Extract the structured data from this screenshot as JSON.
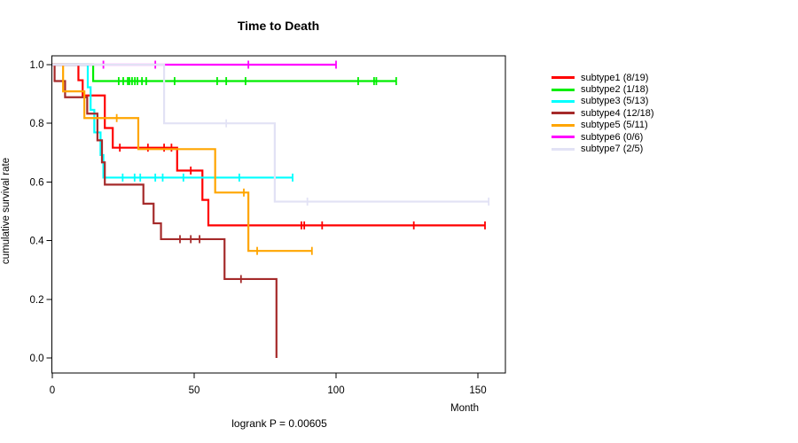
{
  "window": {
    "title": "Time to Death"
  },
  "chart_data": {
    "type": "line",
    "variant": "kaplan-meier-step",
    "title": "Time to Death",
    "xlabel": "Month",
    "ylabel": "cumulative survival rate",
    "annotation": "logrank P = 0.00605",
    "xlim": [
      0,
      160
    ],
    "ylim": [
      0.0,
      1.0
    ],
    "x_ticks": [
      0,
      50,
      100,
      150
    ],
    "y_ticks": [
      0.0,
      0.2,
      0.4,
      0.6,
      0.8,
      1.0
    ],
    "grid": false,
    "legend_position": "right-outside",
    "series": [
      {
        "name": "subtype1",
        "label": "subtype1 (8/19)",
        "events": "8/19",
        "color": "#ff0000",
        "steps": [
          [
            0,
            1.0
          ],
          [
            9.2,
            0.947
          ],
          [
            10.7,
            0.895
          ],
          [
            18.5,
            0.784
          ],
          [
            21.3,
            0.717
          ],
          [
            44,
            0.639
          ],
          [
            52.9,
            0.539
          ],
          [
            55,
            0.452
          ]
        ],
        "end": 152.5,
        "censors": [
          [
            23.8,
            0.717
          ],
          [
            33.7,
            0.717
          ],
          [
            39.4,
            0.717
          ],
          [
            42,
            0.717
          ],
          [
            48.8,
            0.639
          ],
          [
            87.8,
            0.452
          ],
          [
            88.8,
            0.452
          ],
          [
            95.1,
            0.452
          ],
          [
            127.4,
            0.452
          ],
          [
            152.5,
            0.452
          ]
        ]
      },
      {
        "name": "subtype2",
        "label": "subtype2 (1/18)",
        "events": "1/18",
        "color": "#00ee00",
        "steps": [
          [
            0,
            1.0
          ],
          [
            14.4,
            0.944
          ]
        ],
        "end": 121.2,
        "censors": [
          [
            23.4,
            0.944
          ],
          [
            25,
            0.944
          ],
          [
            26.6,
            0.944
          ],
          [
            27.2,
            0.944
          ],
          [
            28.1,
            0.944
          ],
          [
            29.1,
            0.944
          ],
          [
            30,
            0.944
          ],
          [
            31.6,
            0.944
          ],
          [
            33.1,
            0.944
          ],
          [
            43.1,
            0.944
          ],
          [
            58.1,
            0.944
          ],
          [
            61.3,
            0.944
          ],
          [
            68.1,
            0.944
          ],
          [
            107.8,
            0.944
          ],
          [
            113.4,
            0.944
          ],
          [
            114.2,
            0.944
          ],
          [
            121.2,
            0.944
          ]
        ]
      },
      {
        "name": "subtype3",
        "label": "subtype3 (5/13)",
        "events": "5/13",
        "color": "#00ffff",
        "steps": [
          [
            0,
            1.0
          ],
          [
            12.5,
            0.923
          ],
          [
            13.5,
            0.846
          ],
          [
            14.8,
            0.769
          ],
          [
            17,
            0.692
          ],
          [
            18,
            0.615
          ]
        ],
        "end": 84.7,
        "censors": [
          [
            24.8,
            0.615
          ],
          [
            29,
            0.615
          ],
          [
            31,
            0.615
          ],
          [
            36.3,
            0.615
          ],
          [
            38.9,
            0.615
          ],
          [
            46.2,
            0.615
          ],
          [
            65.9,
            0.615
          ],
          [
            84.7,
            0.615
          ]
        ]
      },
      {
        "name": "subtype4",
        "label": "subtype4 (12/18)",
        "events": "12/18",
        "color": "#a52a2a",
        "steps": [
          [
            0,
            1.0
          ],
          [
            0.8,
            0.944
          ],
          [
            4.5,
            0.889
          ],
          [
            12.3,
            0.833
          ],
          [
            15.9,
            0.742
          ],
          [
            17.5,
            0.667
          ],
          [
            18.5,
            0.591
          ],
          [
            32.1,
            0.526
          ],
          [
            35.7,
            0.459
          ],
          [
            38.3,
            0.405
          ],
          [
            60.7,
            0.269
          ],
          [
            79,
            0.0
          ]
        ],
        "end": 79,
        "censors": [
          [
            45,
            0.405
          ],
          [
            48.8,
            0.405
          ],
          [
            51.9,
            0.405
          ],
          [
            66.5,
            0.269
          ]
        ]
      },
      {
        "name": "subtype5",
        "label": "subtype5 (5/11)",
        "events": "5/11",
        "color": "#ffa500",
        "steps": [
          [
            0,
            1.0
          ],
          [
            3.8,
            0.909
          ],
          [
            11.3,
            0.818
          ],
          [
            30.3,
            0.712
          ],
          [
            57.4,
            0.564
          ],
          [
            69.1,
            0.365
          ]
        ],
        "end": 91.5,
        "censors": [
          [
            22.7,
            0.818
          ],
          [
            67.5,
            0.564
          ],
          [
            72.2,
            0.365
          ],
          [
            91.5,
            0.365
          ]
        ]
      },
      {
        "name": "subtype6",
        "label": "subtype6 (0/6)",
        "events": "0/6",
        "color": "#ff00ff",
        "steps": [
          [
            0,
            1.0
          ]
        ],
        "end": 100,
        "censors": [
          [
            18,
            1.0
          ],
          [
            36.3,
            1.0
          ],
          [
            69.1,
            1.0
          ],
          [
            100,
            1.0
          ]
        ]
      },
      {
        "name": "subtype7",
        "label": "subtype7 (2/5)",
        "events": "2/5",
        "color": "#e2e2f5",
        "steps": [
          [
            0,
            1.0
          ],
          [
            39.4,
            0.8
          ],
          [
            78.4,
            0.533
          ]
        ],
        "end": 153.8,
        "censors": [
          [
            61.3,
            0.8
          ],
          [
            89.9,
            0.533
          ],
          [
            153.8,
            0.533
          ]
        ]
      }
    ]
  }
}
